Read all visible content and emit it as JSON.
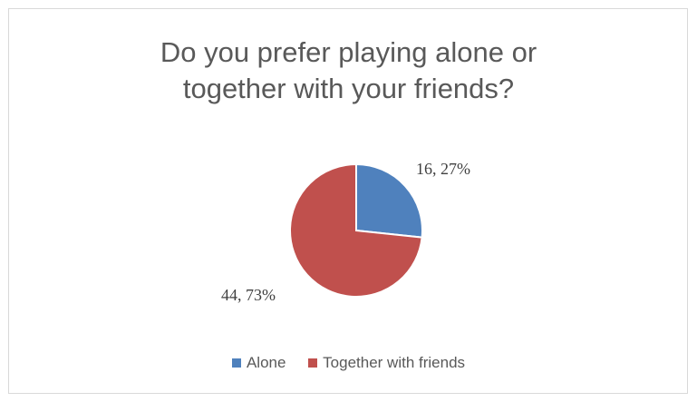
{
  "chart_data": {
    "type": "pie",
    "title_lines": [
      "Do you prefer playing alone or",
      "together with your friends?"
    ],
    "categories": [
      "Alone",
      "Together with friends"
    ],
    "values": [
      16,
      44
    ],
    "percents": [
      27,
      73
    ],
    "data_labels": [
      "16, 27%",
      "44, 73%"
    ],
    "colors": [
      "#4f81bd",
      "#c0504d"
    ],
    "legend_position": "bottom"
  }
}
